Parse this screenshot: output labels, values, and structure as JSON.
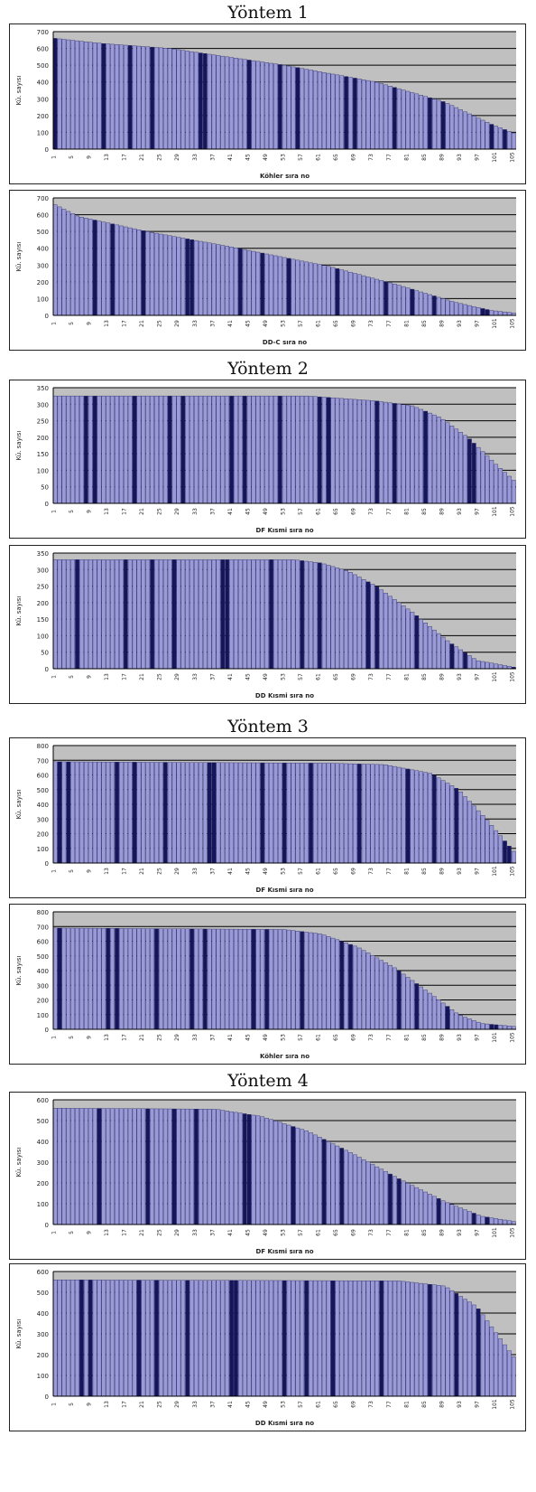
{
  "sections": [
    {
      "title": "Yöntem 1"
    },
    {
      "title": "Yöntem 2"
    },
    {
      "title": "Yöntem 3"
    },
    {
      "title": "Yöntem 4"
    }
  ],
  "colors": {
    "plot_bg": "#c0c0c0",
    "bar_light": "#9a9ad8",
    "bar_dark": "#15155c",
    "bar_edge": "#2a2a6a",
    "grid": "#000000"
  },
  "chart_data": [
    {
      "type": "bar",
      "section": "Yöntem 1",
      "n_bars": 105,
      "ylim": [
        0,
        700
      ],
      "yticks": [
        0,
        100,
        200,
        300,
        400,
        500,
        600,
        700
      ],
      "xlabel": "Köhler sıra no",
      "ylabel": "Kü. sayısı",
      "grid": true,
      "profile": [
        [
          0,
          660
        ],
        [
          0.1,
          630
        ],
        [
          0.25,
          600
        ],
        [
          0.5,
          500
        ],
        [
          0.7,
          400
        ],
        [
          0.85,
          280
        ],
        [
          0.95,
          150
        ],
        [
          1,
          95
        ]
      ]
    },
    {
      "type": "bar",
      "section": "Yöntem 1",
      "n_bars": 105,
      "ylim": [
        0,
        700
      ],
      "yticks": [
        0,
        100,
        200,
        300,
        400,
        500,
        600,
        700
      ],
      "xlabel": "DD-C sıra no",
      "ylabel": "Kü. sayısı",
      "grid": true,
      "profile": [
        [
          0,
          660
        ],
        [
          0.05,
          590
        ],
        [
          0.2,
          500
        ],
        [
          0.4,
          400
        ],
        [
          0.6,
          290
        ],
        [
          0.75,
          180
        ],
        [
          0.87,
          80
        ],
        [
          0.95,
          30
        ],
        [
          1,
          15
        ]
      ]
    },
    {
      "type": "bar",
      "section": "Yöntem 2",
      "n_bars": 105,
      "ylim": [
        0,
        350
      ],
      "yticks": [
        0,
        50,
        100,
        150,
        200,
        250,
        300,
        350
      ],
      "xlabel": "DF Kısmi sıra no",
      "ylabel": "Kü. sayısı",
      "grid": true,
      "profile": [
        [
          0,
          325
        ],
        [
          0.55,
          325
        ],
        [
          0.7,
          310
        ],
        [
          0.78,
          295
        ],
        [
          0.84,
          260
        ],
        [
          0.9,
          200
        ],
        [
          0.96,
          120
        ],
        [
          1,
          70
        ]
      ]
    },
    {
      "type": "bar",
      "section": "Yöntem 2",
      "n_bars": 105,
      "ylim": [
        0,
        350
      ],
      "yticks": [
        0,
        50,
        100,
        150,
        200,
        250,
        300,
        350
      ],
      "xlabel": "DD Kısmi sıra no",
      "ylabel": "Kü. sayısı",
      "grid": true,
      "profile": [
        [
          0,
          330
        ],
        [
          0.52,
          330
        ],
        [
          0.58,
          320
        ],
        [
          0.64,
          295
        ],
        [
          0.7,
          250
        ],
        [
          0.78,
          170
        ],
        [
          0.86,
          80
        ],
        [
          0.92,
          25
        ],
        [
          1,
          5
        ]
      ]
    },
    {
      "type": "bar",
      "section": "Yöntem 3",
      "n_bars": 105,
      "ylim": [
        0,
        800
      ],
      "yticks": [
        0,
        100,
        200,
        300,
        400,
        500,
        600,
        700,
        800
      ],
      "xlabel": "DF Kısmi sıra no",
      "ylabel": "Kü. sayısı",
      "grid": true,
      "profile": [
        [
          0,
          690
        ],
        [
          0.6,
          680
        ],
        [
          0.72,
          670
        ],
        [
          0.82,
          610
        ],
        [
          0.88,
          500
        ],
        [
          0.94,
          300
        ],
        [
          1,
          80
        ]
      ]
    },
    {
      "type": "bar",
      "section": "Yöntem 3",
      "n_bars": 105,
      "ylim": [
        0,
        800
      ],
      "yticks": [
        0,
        100,
        200,
        300,
        400,
        500,
        600,
        700,
        800
      ],
      "xlabel": "Köhler sıra no",
      "ylabel": "Kü. sayısı",
      "grid": true,
      "profile": [
        [
          0,
          690
        ],
        [
          0.5,
          680
        ],
        [
          0.58,
          650
        ],
        [
          0.66,
          560
        ],
        [
          0.74,
          420
        ],
        [
          0.82,
          240
        ],
        [
          0.88,
          100
        ],
        [
          0.93,
          40
        ],
        [
          1,
          20
        ]
      ]
    },
    {
      "type": "bar",
      "section": "Yöntem 4",
      "n_bars": 105,
      "ylim": [
        0,
        600
      ],
      "yticks": [
        0,
        100,
        200,
        300,
        400,
        500,
        600
      ],
      "xlabel": "DF Kısmi sıra no",
      "ylabel": "Kü. sayısı",
      "grid": true,
      "profile": [
        [
          0,
          560
        ],
        [
          0.35,
          555
        ],
        [
          0.45,
          520
        ],
        [
          0.55,
          450
        ],
        [
          0.65,
          340
        ],
        [
          0.75,
          220
        ],
        [
          0.85,
          110
        ],
        [
          0.93,
          40
        ],
        [
          1,
          15
        ]
      ]
    },
    {
      "type": "bar",
      "section": "Yöntem 4",
      "n_bars": 105,
      "ylim": [
        0,
        600
      ],
      "yticks": [
        0,
        100,
        200,
        300,
        400,
        500,
        600
      ],
      "xlabel": "DD Kısmi sıra no",
      "ylabel": "Kü. sayısı",
      "grid": true,
      "profile": [
        [
          0,
          560
        ],
        [
          0.75,
          555
        ],
        [
          0.85,
          530
        ],
        [
          0.92,
          430
        ],
        [
          0.97,
          280
        ],
        [
          1,
          190
        ]
      ]
    }
  ]
}
